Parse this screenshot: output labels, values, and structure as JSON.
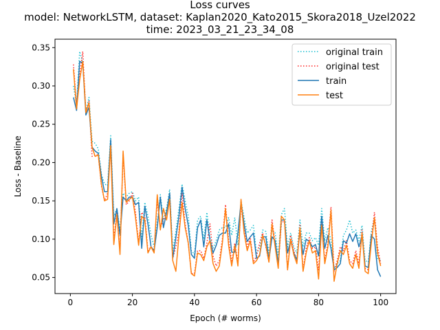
{
  "chart_data": {
    "type": "line",
    "title": [
      "Loss curves",
      "model: NetworkLSTM, dataset: Kaplan2020_Kato2015_Skora2018_Uzel2022",
      "time: 2023_03_21_23_34_08"
    ],
    "xlabel": "Epoch (# worms)",
    "ylabel": "Loss - Baseline",
    "xlim": [
      -4.95,
      104.95
    ],
    "ylim": [
      0.029,
      0.361
    ],
    "xticks": [
      0,
      20,
      40,
      60,
      80,
      100
    ],
    "xtick_labels": [
      "0",
      "20",
      "40",
      "60",
      "80",
      "100"
    ],
    "yticks": [
      0.05,
      0.1,
      0.15,
      0.2,
      0.25,
      0.3,
      0.35
    ],
    "ytick_labels": [
      "0.05",
      "0.10",
      "0.15",
      "0.20",
      "0.25",
      "0.30",
      "0.35"
    ],
    "grid": false,
    "legend_position": "top-right",
    "x": [
      1,
      2,
      3,
      4,
      5,
      6,
      7,
      8,
      9,
      10,
      11,
      12,
      13,
      14,
      15,
      16,
      17,
      18,
      19,
      20,
      21,
      22,
      23,
      24,
      25,
      26,
      27,
      28,
      29,
      30,
      31,
      32,
      33,
      34,
      35,
      36,
      37,
      38,
      39,
      40,
      41,
      42,
      43,
      44,
      45,
      46,
      47,
      48,
      49,
      50,
      51,
      52,
      53,
      54,
      55,
      56,
      57,
      58,
      59,
      60,
      61,
      62,
      63,
      64,
      65,
      66,
      67,
      68,
      69,
      70,
      71,
      72,
      73,
      74,
      75,
      76,
      77,
      78,
      79,
      80,
      81,
      82,
      83,
      84,
      85,
      86,
      87,
      88,
      89,
      90,
      91,
      92,
      93,
      94,
      95,
      96,
      97,
      98,
      99,
      100
    ],
    "series": [
      {
        "name": "original train",
        "color": "#17becf",
        "style": "dotted",
        "values": [
          0.3,
          0.275,
          0.345,
          0.33,
          0.268,
          0.285,
          0.228,
          0.225,
          0.218,
          0.185,
          0.172,
          0.17,
          0.235,
          0.13,
          0.14,
          0.112,
          0.16,
          0.155,
          0.16,
          0.162,
          0.15,
          0.155,
          0.1,
          0.148,
          0.13,
          0.105,
          0.09,
          0.12,
          0.158,
          0.125,
          0.14,
          0.165,
          0.085,
          0.11,
          0.14,
          0.172,
          0.15,
          0.13,
          0.085,
          0.08,
          0.125,
          0.13,
          0.1,
          0.135,
          0.102,
          0.088,
          0.098,
          0.112,
          0.115,
          0.115,
          0.128,
          0.105,
          0.128,
          0.092,
          0.15,
          0.128,
          0.108,
          0.112,
          0.118,
          0.082,
          0.088,
          0.112,
          0.11,
          0.082,
          0.112,
          0.108,
          0.078,
          0.132,
          0.14,
          0.09,
          0.108,
          0.09,
          0.082,
          0.125,
          0.09,
          0.108,
          0.108,
          0.098,
          0.102,
          0.092,
          0.14,
          0.098,
          0.115,
          0.098,
          0.062,
          0.068,
          0.072,
          0.105,
          0.112,
          0.125,
          0.108,
          0.112,
          0.098,
          0.118,
          0.072,
          0.07,
          0.11,
          0.128,
          0.075,
          0.072
        ]
      },
      {
        "name": "original test",
        "color": "#ff2222",
        "style": "dotted",
        "values": [
          0.328,
          0.275,
          0.315,
          0.345,
          0.265,
          0.28,
          0.208,
          0.21,
          0.21,
          0.17,
          0.15,
          0.16,
          0.22,
          0.1,
          0.135,
          0.085,
          0.21,
          0.145,
          0.15,
          0.16,
          0.135,
          0.095,
          0.135,
          0.13,
          0.085,
          0.09,
          0.085,
          0.15,
          0.115,
          0.125,
          0.135,
          0.16,
          0.075,
          0.09,
          0.11,
          0.16,
          0.12,
          0.095,
          0.055,
          0.055,
          0.085,
          0.085,
          0.075,
          0.095,
          0.12,
          0.078,
          0.065,
          0.072,
          0.1,
          0.145,
          0.1,
          0.07,
          0.095,
          0.07,
          0.145,
          0.112,
          0.09,
          0.102,
          0.07,
          0.078,
          0.095,
          0.108,
          0.09,
          0.07,
          0.125,
          0.095,
          0.065,
          0.12,
          0.125,
          0.06,
          0.105,
          0.085,
          0.072,
          0.118,
          0.06,
          0.088,
          0.102,
          0.088,
          0.09,
          0.06,
          0.122,
          0.072,
          0.095,
          0.142,
          0.058,
          0.072,
          0.09,
          0.085,
          0.098,
          0.072,
          0.068,
          0.085,
          0.068,
          0.112,
          0.062,
          0.06,
          0.1,
          0.135,
          0.09,
          0.068
        ]
      },
      {
        "name": "train",
        "color": "#1f77b4",
        "style": "solid",
        "values": [
          0.285,
          0.268,
          0.332,
          0.33,
          0.262,
          0.272,
          0.22,
          0.215,
          0.212,
          0.182,
          0.162,
          0.162,
          0.23,
          0.12,
          0.14,
          0.105,
          0.155,
          0.15,
          0.155,
          0.155,
          0.145,
          0.148,
          0.088,
          0.143,
          0.12,
          0.09,
          0.085,
          0.115,
          0.155,
          0.115,
          0.135,
          0.16,
          0.075,
          0.102,
          0.13,
          0.168,
          0.14,
          0.118,
          0.08,
          0.075,
          0.115,
          0.125,
          0.09,
          0.125,
          0.098,
          0.082,
          0.092,
          0.105,
          0.108,
          0.108,
          0.12,
          0.083,
          0.083,
          0.108,
          0.148,
          0.12,
          0.097,
          0.103,
          0.108,
          0.075,
          0.078,
          0.103,
          0.103,
          0.073,
          0.103,
          0.098,
          0.068,
          0.125,
          0.125,
          0.082,
          0.098,
          0.082,
          0.073,
          0.11,
          0.08,
          0.1,
          0.097,
          0.09,
          0.093,
          0.078,
          0.13,
          0.088,
          0.105,
          0.088,
          0.06,
          0.063,
          0.068,
          0.098,
          0.095,
          0.107,
          0.097,
          0.107,
          0.09,
          0.105,
          0.065,
          0.063,
          0.105,
          0.1,
          0.06,
          0.051
        ]
      },
      {
        "name": "test",
        "color": "#ff7f0e",
        "style": "solid",
        "values": [
          0.322,
          0.27,
          0.308,
          0.332,
          0.265,
          0.278,
          0.22,
          0.208,
          0.21,
          0.172,
          0.15,
          0.152,
          0.222,
          0.093,
          0.132,
          0.08,
          0.215,
          0.148,
          0.152,
          0.155,
          0.128,
          0.092,
          0.13,
          0.125,
          0.082,
          0.09,
          0.082,
          0.158,
          0.112,
          0.14,
          0.125,
          0.152,
          0.072,
          0.058,
          0.105,
          0.148,
          0.115,
          0.095,
          0.055,
          0.052,
          0.082,
          0.08,
          0.072,
          0.09,
          0.098,
          0.068,
          0.058,
          0.065,
          0.095,
          0.14,
          0.092,
          0.065,
          0.092,
          0.065,
          0.152,
          0.108,
          0.085,
          0.098,
          0.068,
          0.072,
          0.08,
          0.105,
          0.092,
          0.07,
          0.12,
          0.09,
          0.062,
          0.13,
          0.125,
          0.06,
          0.1,
          0.08,
          0.068,
          0.115,
          0.058,
          0.082,
          0.098,
          0.082,
          0.085,
          0.048,
          0.118,
          0.068,
          0.09,
          0.138,
          0.045,
          0.068,
          0.085,
          0.08,
          0.092,
          0.068,
          0.062,
          0.08,
          0.062,
          0.108,
          0.058,
          0.055,
          0.095,
          0.128,
          0.082,
          0.065
        ]
      }
    ]
  }
}
